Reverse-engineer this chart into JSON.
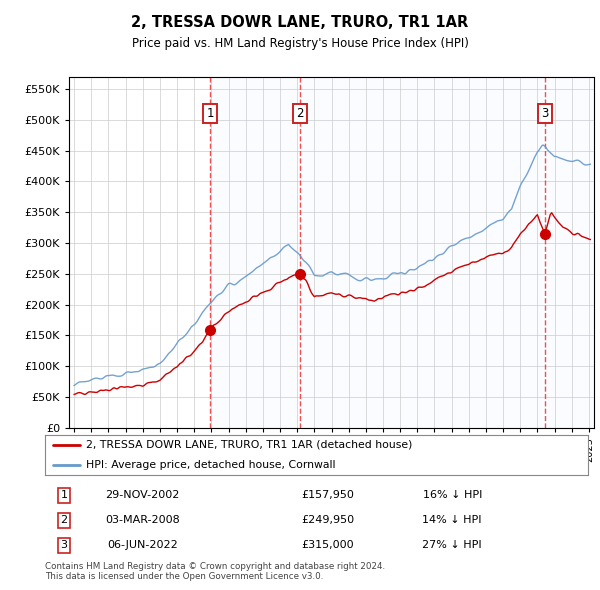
{
  "title": "2, TRESSA DOWR LANE, TRURO, TR1 1AR",
  "subtitle": "Price paid vs. HM Land Registry's House Price Index (HPI)",
  "legend_label_red": "2, TRESSA DOWR LANE, TRURO, TR1 1AR (detached house)",
  "legend_label_blue": "HPI: Average price, detached house, Cornwall",
  "footer1": "Contains HM Land Registry data © Crown copyright and database right 2024.",
  "footer2": "This data is licensed under the Open Government Licence v3.0.",
  "transactions": [
    {
      "num": 1,
      "date": "29-NOV-2002",
      "price": "£157,950",
      "hpi": "16% ↓ HPI",
      "year": 2002.92
    },
    {
      "num": 2,
      "date": "03-MAR-2008",
      "price": "£249,950",
      "hpi": "14% ↓ HPI",
      "year": 2008.17
    },
    {
      "num": 3,
      "date": "06-JUN-2022",
      "price": "£315,000",
      "hpi": "27% ↓ HPI",
      "year": 2022.43
    }
  ],
  "transaction_values": [
    157950,
    249950,
    315000
  ],
  "ylim": [
    0,
    570000
  ],
  "yticks": [
    0,
    50000,
    100000,
    150000,
    200000,
    250000,
    300000,
    350000,
    400000,
    450000,
    500000,
    550000
  ],
  "xlim_start": 1994.7,
  "xlim_end": 2025.3,
  "background_color": "#ffffff",
  "grid_color": "#cccccc",
  "vline_color": "#ee3333",
  "red_line_color": "#cc0000",
  "blue_line_color": "#6699cc",
  "shade_color": "#ddeeff"
}
